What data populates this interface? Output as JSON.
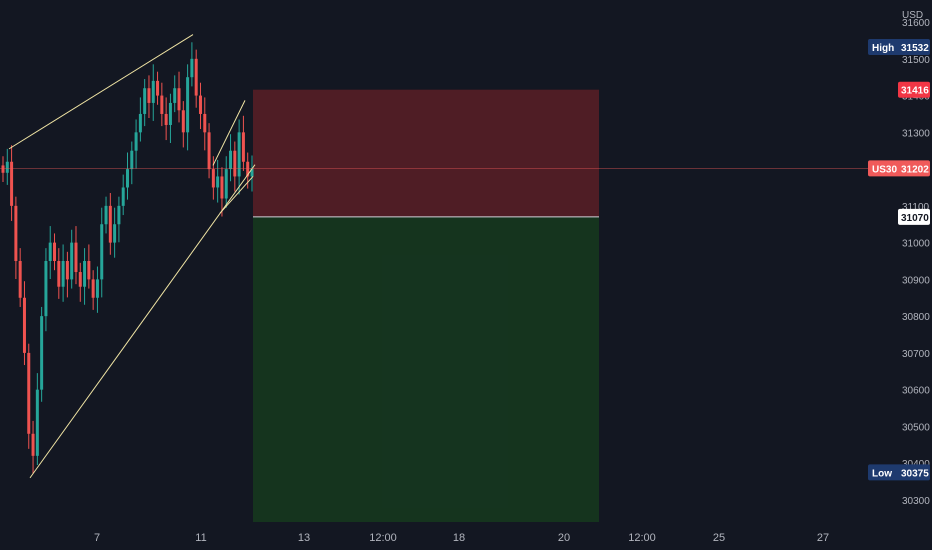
{
  "chart_data": {
    "type": "candlestick",
    "symbol": "US30",
    "currency": "USD",
    "ylim": [
      30240,
      31660
    ],
    "y_ticks": [
      31600,
      31500,
      31400,
      31300,
      31200,
      31100,
      31000,
      30900,
      30800,
      30700,
      30600,
      30500,
      30400,
      30300
    ],
    "x_ticks": [
      "7",
      "11",
      "13",
      "12:00",
      "18",
      "20",
      "12:00",
      "25",
      "27"
    ],
    "high": {
      "label": "High",
      "value": "31532"
    },
    "low": {
      "label": "Low",
      "value": "30375"
    },
    "current": {
      "label": "US30",
      "value": "31202"
    },
    "stop_price": "31416",
    "entry_price": "31070",
    "close_series": [
      31190,
      31220,
      31100,
      30950,
      30850,
      30700,
      30480,
      30420,
      30600,
      30800,
      30950,
      31000,
      30950,
      30880,
      30950,
      30900,
      31000,
      30920,
      30880,
      30950,
      30900,
      30850,
      30900,
      31050,
      31100,
      31000,
      31050,
      31100,
      31150,
      31200,
      31250,
      31300,
      31350,
      31420,
      31380,
      31440,
      31400,
      31350,
      31320,
      31380,
      31420,
      31360,
      31300,
      31450,
      31500,
      31400,
      31350,
      31300,
      31200,
      31150,
      31180,
      31120,
      31200,
      31250,
      31180,
      31300,
      31220,
      31180,
      31202
    ],
    "colors": {
      "up": "#26a69a",
      "down": "#ef5350",
      "trendline": "#f0e4a4",
      "stop_zone": "#5b1f26",
      "target_zone": "#15361f",
      "high_badge": "#1e3a6e",
      "stop_badge": "#f23645",
      "current_badge": "#f05a5a"
    }
  }
}
